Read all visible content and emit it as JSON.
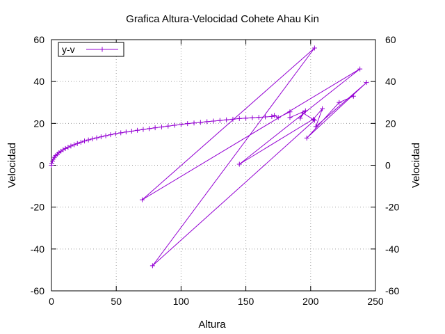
{
  "chart_data": {
    "type": "line",
    "title": "Grafica Altura-Velocidad Cohete Ahau Kin",
    "xlabel": "Altura",
    "ylabel": "Velocidad",
    "y2label": "Velocidad",
    "xlim": [
      0,
      250
    ],
    "ylim": [
      -60,
      60
    ],
    "xticks": [
      0,
      50,
      100,
      150,
      200,
      250
    ],
    "yticks": [
      -60,
      -40,
      -20,
      0,
      20,
      40,
      60
    ],
    "grid": true,
    "legend_position": "top-left",
    "series": [
      {
        "name": "y-v",
        "color": "#9400d3",
        "marker": "plus",
        "x": [
          0,
          0.3,
          0.8,
          1.5,
          2.3,
          3.3,
          4.5,
          5.8,
          7.3,
          9,
          10.8,
          12.8,
          15,
          17.5,
          20,
          22.7,
          25.5,
          28.5,
          31.6,
          34.9,
          38.3,
          41.9,
          45.6,
          49.5,
          53.5,
          57.6,
          61.9,
          66.3,
          70.8,
          75.4,
          80,
          85,
          90,
          95,
          100,
          105,
          110,
          115,
          120,
          125,
          130,
          135,
          140,
          145,
          150,
          155,
          160,
          165,
          170,
          172,
          175,
          184,
          184,
          196,
          192,
          194,
          203,
          78,
          203,
          70,
          238,
          145,
          202,
          209,
          204,
          243,
          197,
          222,
          233
        ],
        "y": [
          0,
          1,
          2,
          3,
          3.8,
          4.6,
          5.3,
          6,
          6.7,
          7.4,
          8,
          8.6,
          9.2,
          9.8,
          10.4,
          11,
          11.6,
          12.1,
          12.6,
          13.1,
          13.6,
          14.1,
          14.6,
          15.1,
          15.5,
          15.9,
          16.3,
          16.7,
          17.1,
          17.5,
          17.9,
          18.3,
          18.7,
          19.1,
          19.5,
          19.9,
          20.2,
          20.5,
          20.8,
          21.1,
          21.4,
          21.7,
          22,
          22.3,
          22.5,
          22.7,
          22.9,
          23.1,
          23.3,
          23.8,
          22.8,
          25.5,
          22.8,
          26,
          22.5,
          25,
          21.5,
          -48,
          56,
          -16.5,
          46,
          0.5,
          22,
          27,
          18.5,
          39.5,
          13,
          30,
          33
        ]
      }
    ]
  }
}
